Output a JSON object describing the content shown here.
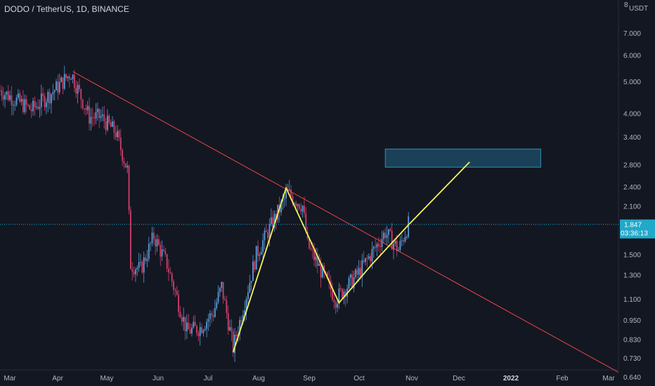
{
  "header": {
    "title": "DODO / TetherUS, 1D, BINANCE",
    "unit": "USDT",
    "unit_prefix": "8"
  },
  "colors": {
    "background": "#131722",
    "text": "#b2b5be",
    "up": "#5b9bd5",
    "down": "#d0406a",
    "trendline": "#e84545",
    "pattern": "#f3f35a",
    "target_box": "#2a8fbd",
    "price_label_bg": "#22a8c9",
    "current_price_line": "#22a8c9"
  },
  "price_label": {
    "price": "1.847",
    "countdown": "03:36:13"
  },
  "chart_data": {
    "type": "candlestick",
    "title": "DODO / TetherUS, 1D, BINANCE",
    "y_scale": "log",
    "ylim": [
      0.6,
      8.8
    ],
    "yticks": [
      "7.000",
      "6.000",
      "5.000",
      "4.000",
      "3.400",
      "2.800",
      "2.400",
      "2.100",
      "1.500",
      "1.300",
      "1.100",
      "0.950",
      "0.830",
      "0.730",
      "0.640"
    ],
    "xticks": [
      "Mar",
      "Apr",
      "May",
      "Jun",
      "Jul",
      "Aug",
      "Sep",
      "Oct",
      "Nov",
      "Dec",
      "2022",
      "Feb",
      "Mar"
    ],
    "xlim": [
      "2021-03-01",
      "2022-03-10"
    ],
    "current_price": 1.847,
    "path_points": [
      [
        "2021-03-01",
        4.7
      ],
      [
        "2021-03-20",
        4.1
      ],
      [
        "2021-04-01",
        4.6
      ],
      [
        "2021-04-13",
        5.3
      ],
      [
        "2021-04-24",
        3.9
      ],
      [
        "2021-05-01",
        3.9
      ],
      [
        "2021-05-10",
        3.5
      ],
      [
        "2021-05-17",
        2.7
      ],
      [
        "2021-05-19",
        1.4
      ],
      [
        "2021-05-25",
        1.35
      ],
      [
        "2021-06-02",
        1.7
      ],
      [
        "2021-06-10",
        1.4
      ],
      [
        "2021-06-22",
        0.88
      ],
      [
        "2021-06-30",
        0.9
      ],
      [
        "2021-07-08",
        1.0
      ],
      [
        "2021-07-13",
        1.2
      ],
      [
        "2021-07-20",
        0.78
      ],
      [
        "2021-08-03",
        1.5
      ],
      [
        "2021-08-22",
        2.3
      ],
      [
        "2021-08-31",
        2.1
      ],
      [
        "2021-09-03",
        1.6
      ],
      [
        "2021-09-20",
        1.1
      ],
      [
        "2021-10-03",
        1.3
      ],
      [
        "2021-10-15",
        1.6
      ],
      [
        "2021-10-20",
        1.75
      ],
      [
        "2021-10-28",
        1.55
      ],
      [
        "2021-11-03",
        1.85
      ]
    ],
    "trendline": {
      "start": [
        "2021-04-14",
        5.35
      ],
      "end": [
        "2022-03-10",
        0.66
      ]
    },
    "pattern_line": [
      [
        "2021-07-20",
        0.76
      ],
      [
        "2021-08-21",
        2.38
      ],
      [
        "2021-09-22",
        1.07
      ],
      [
        "2021-10-12",
        1.4
      ],
      [
        "2021-11-03",
        1.84
      ],
      [
        "2021-12-10",
        2.85
      ]
    ],
    "target_zone": {
      "x0": "2021-10-20",
      "x1": "2022-01-22",
      "y0": 2.75,
      "y1": 3.12
    }
  }
}
